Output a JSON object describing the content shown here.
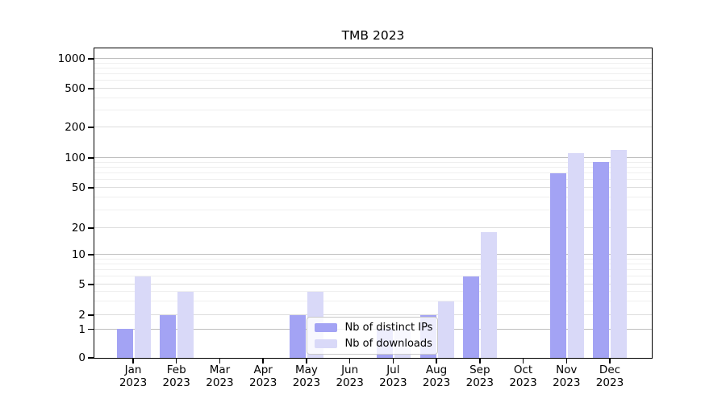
{
  "figure": {
    "title": "TMB 2023"
  },
  "chart_data": {
    "type": "bar",
    "title": "TMB 2023",
    "categories": [
      "Jan",
      "Feb",
      "Mar",
      "Apr",
      "May",
      "Jun",
      "Jul",
      "Aug",
      "Sep",
      "Oct",
      "Nov",
      "Dec"
    ],
    "category_year_line": "2023",
    "series": [
      {
        "name": "Nb of distinct IPs",
        "color": "#a3a3f4",
        "values": [
          1,
          2,
          0,
          0,
          2,
          0,
          1,
          2,
          6,
          0,
          70,
          90
        ]
      },
      {
        "name": "Nb of downloads",
        "color": "#d9d9f8",
        "values": [
          6,
          4,
          0,
          0,
          4,
          0,
          1,
          3,
          18,
          0,
          110,
          120
        ]
      }
    ],
    "xlabel": "",
    "ylabel": "",
    "yscale": "symlog",
    "yticks": [
      0,
      1,
      2,
      5,
      10,
      20,
      50,
      100,
      200,
      500,
      1000
    ],
    "ylim": [
      0,
      1300
    ],
    "grid": "major-and-minor-horizontal",
    "legend": {
      "position": "lower-center-inside",
      "entries": [
        "Nb of distinct IPs",
        "Nb of downloads"
      ]
    },
    "colors": {
      "bar_dark": "#a3a3f4",
      "bar_light": "#d9d9f8",
      "grid_major_decade": "#bfbfbf",
      "grid_major": "#dddddd",
      "grid_minor": "#efefef",
      "axis": "#000000"
    }
  }
}
